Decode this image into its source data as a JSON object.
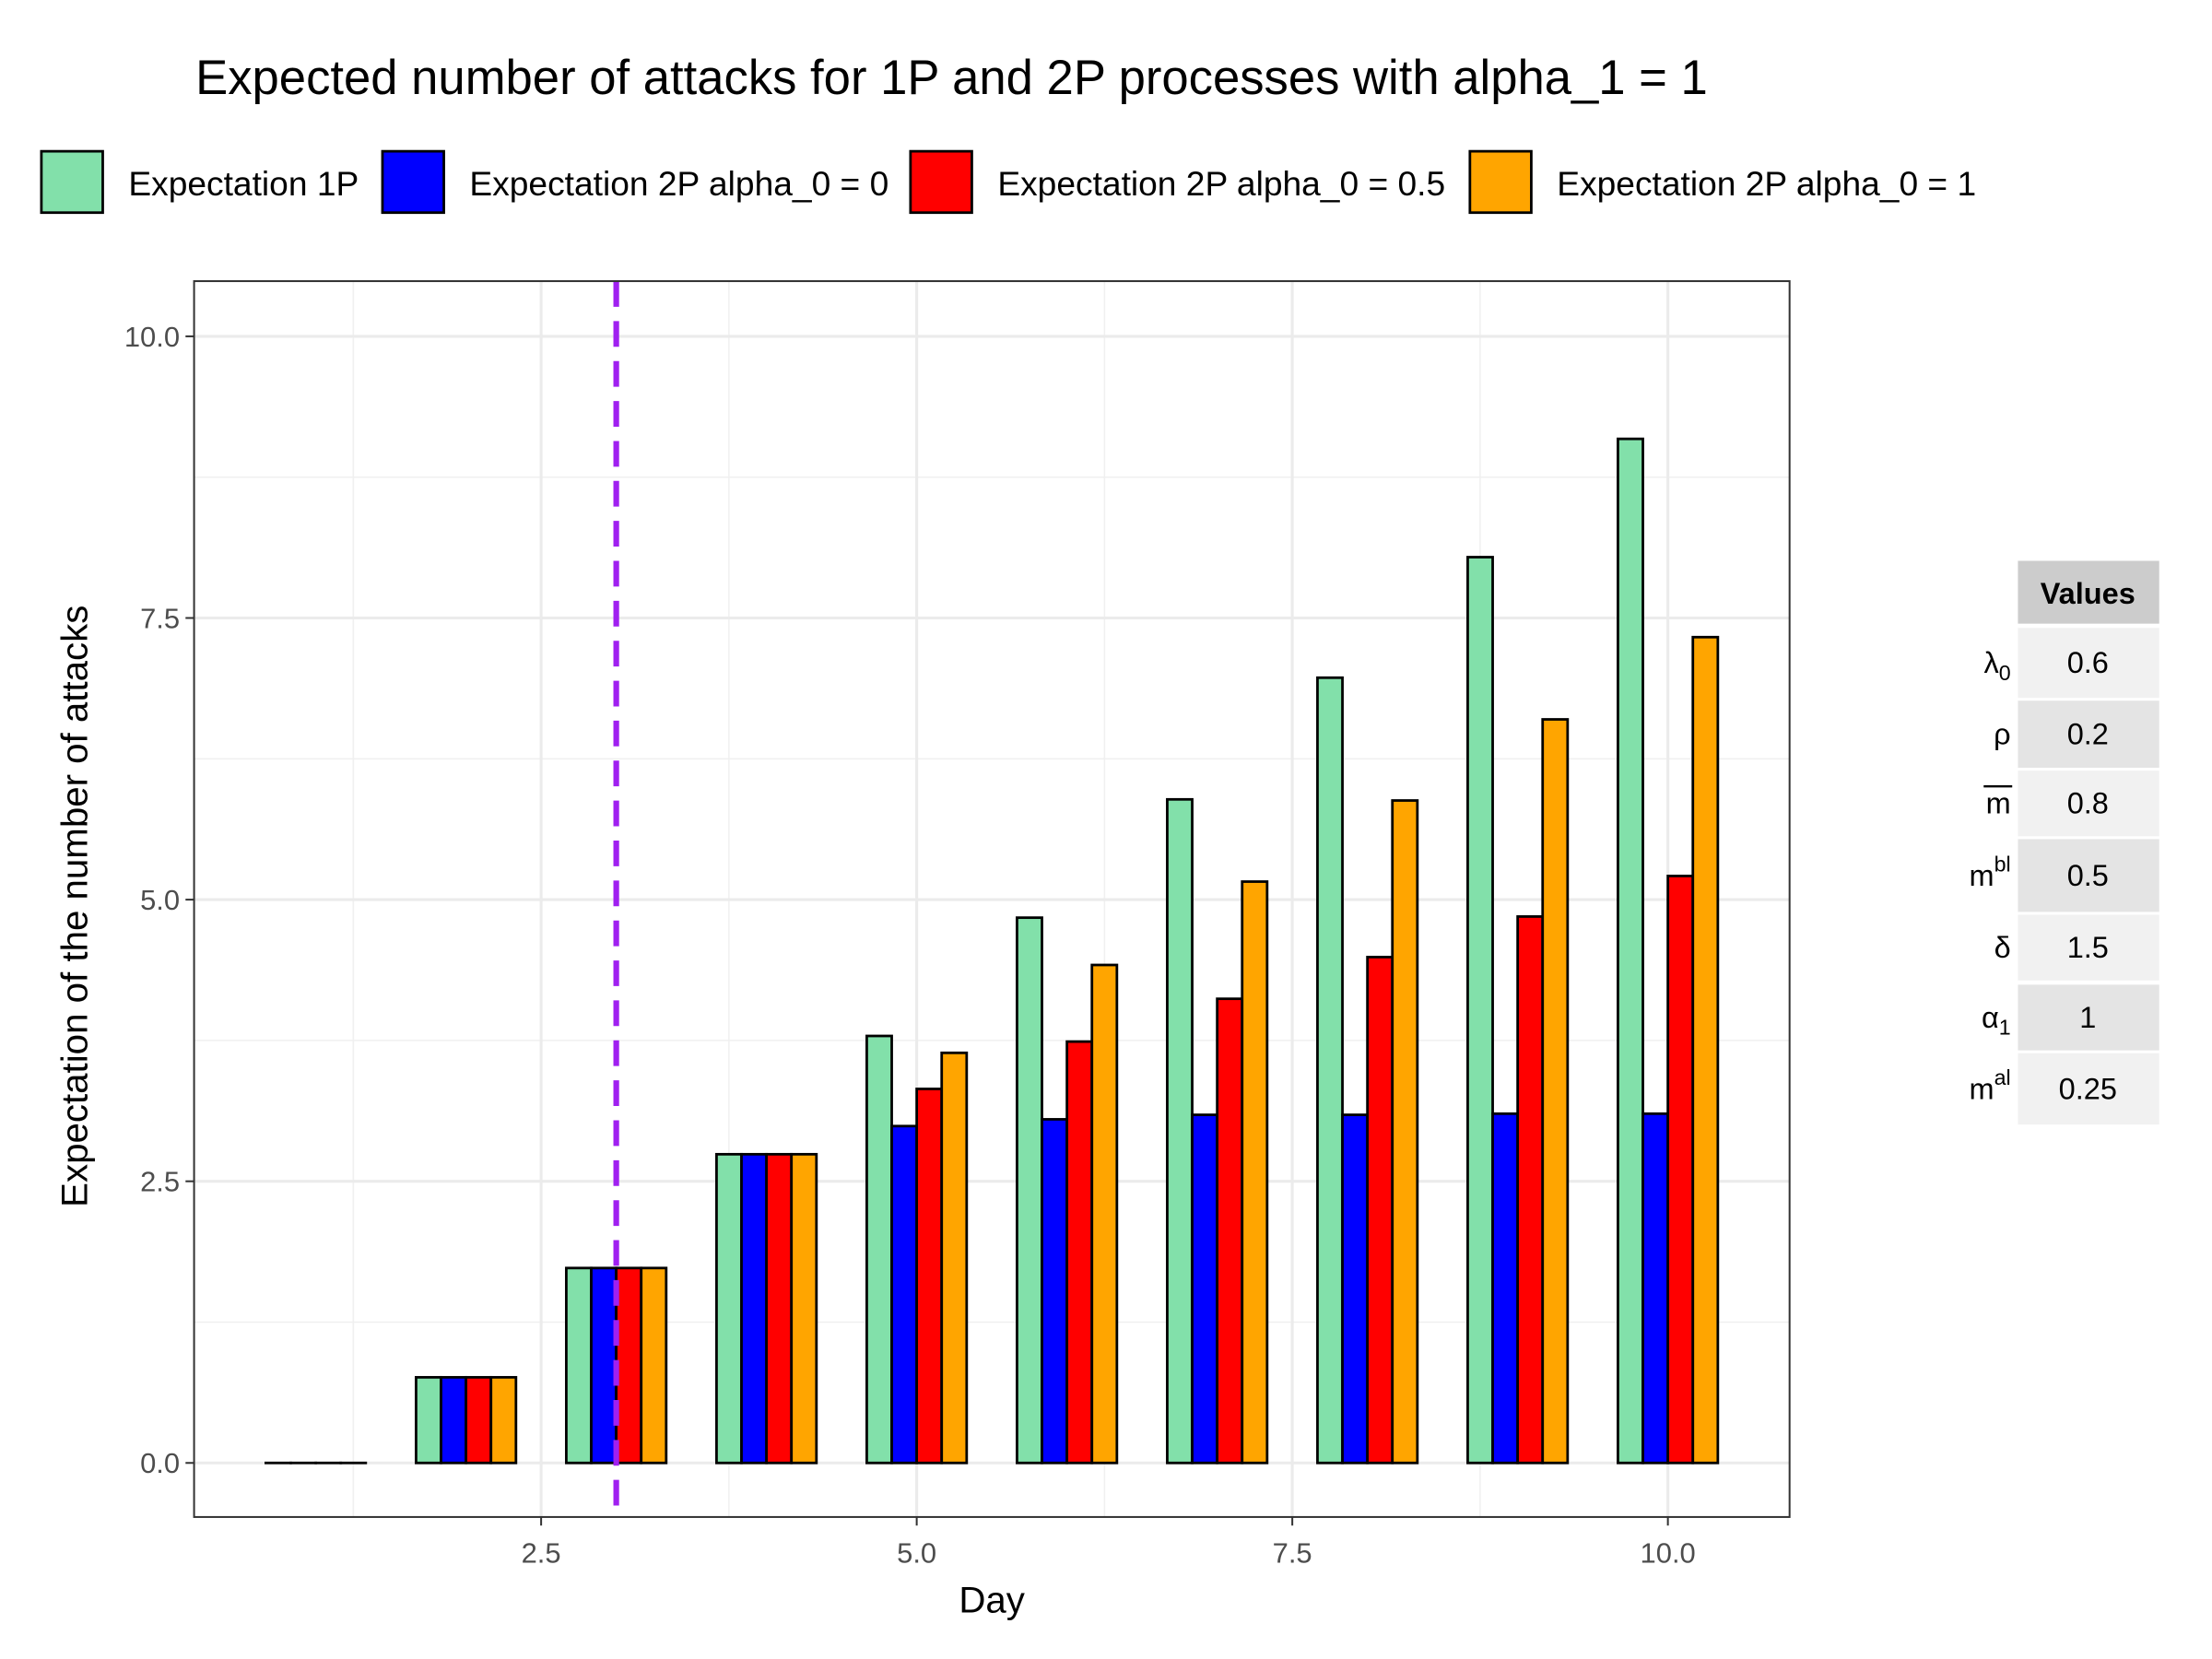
{
  "chart_data": {
    "type": "bar",
    "title": "Expected number of attacks for 1P and 2P processes with alpha_1 = 1",
    "xlabel": "Day",
    "ylabel": "Expectation of the number of attacks",
    "x": [
      1,
      2,
      3,
      4,
      5,
      6,
      7,
      8,
      9,
      10
    ],
    "xlim": [
      0.19,
      10.81
    ],
    "ylim": [
      -0.48,
      10.49
    ],
    "xticks": [
      2.5,
      5.0,
      7.5,
      10.0
    ],
    "xtick_labels": [
      "2.5",
      "5.0",
      "7.5",
      "10.0"
    ],
    "yticks": [
      0,
      2.5,
      5,
      7.5,
      10
    ],
    "ytick_labels": [
      "0.0",
      "2.5",
      "5.0",
      "7.5",
      "10.0"
    ],
    "grid": true,
    "legend_position": "top",
    "vline": {
      "x": 3,
      "color": "#A020F0",
      "style": "dashed"
    },
    "series": [
      {
        "name": "Expectation 1P",
        "color": "#82E0AA",
        "values": [
          0,
          0.76,
          1.73,
          2.74,
          3.79,
          4.84,
          5.89,
          6.97,
          8.04,
          9.09
        ]
      },
      {
        "name": "Expectation 2P alpha_0 = 0",
        "color": "#0000FF",
        "values": [
          0,
          0.76,
          1.73,
          2.74,
          2.99,
          3.05,
          3.09,
          3.09,
          3.1,
          3.1
        ]
      },
      {
        "name": "Expectation 2P alpha_0 = 0.5",
        "color": "#FF0000",
        "values": [
          0,
          0.76,
          1.73,
          2.74,
          3.32,
          3.74,
          4.12,
          4.49,
          4.85,
          5.21
        ]
      },
      {
        "name": "Expectation 2P alpha_0 = 1",
        "color": "#FFA500",
        "values": [
          0,
          0.76,
          1.73,
          2.74,
          3.64,
          4.42,
          5.16,
          5.88,
          6.6,
          7.33
        ]
      }
    ]
  },
  "table": {
    "header": "Values",
    "rows": [
      {
        "label": "λ",
        "sub": "0",
        "sup": "",
        "value": "0.6"
      },
      {
        "label": "ρ",
        "sub": "",
        "sup": "",
        "value": "0.2"
      },
      {
        "label": "m",
        "sub": "",
        "sup": "",
        "overline": true,
        "value": "0.8"
      },
      {
        "label": "m",
        "sub": "",
        "sup": "bl",
        "value": "0.5"
      },
      {
        "label": "δ",
        "sub": "",
        "sup": "",
        "value": "1.5"
      },
      {
        "label": "α",
        "sub": "1",
        "sup": "",
        "value": "1"
      },
      {
        "label": "m",
        "sub": "",
        "sup": "al",
        "value": "0.25"
      }
    ]
  }
}
